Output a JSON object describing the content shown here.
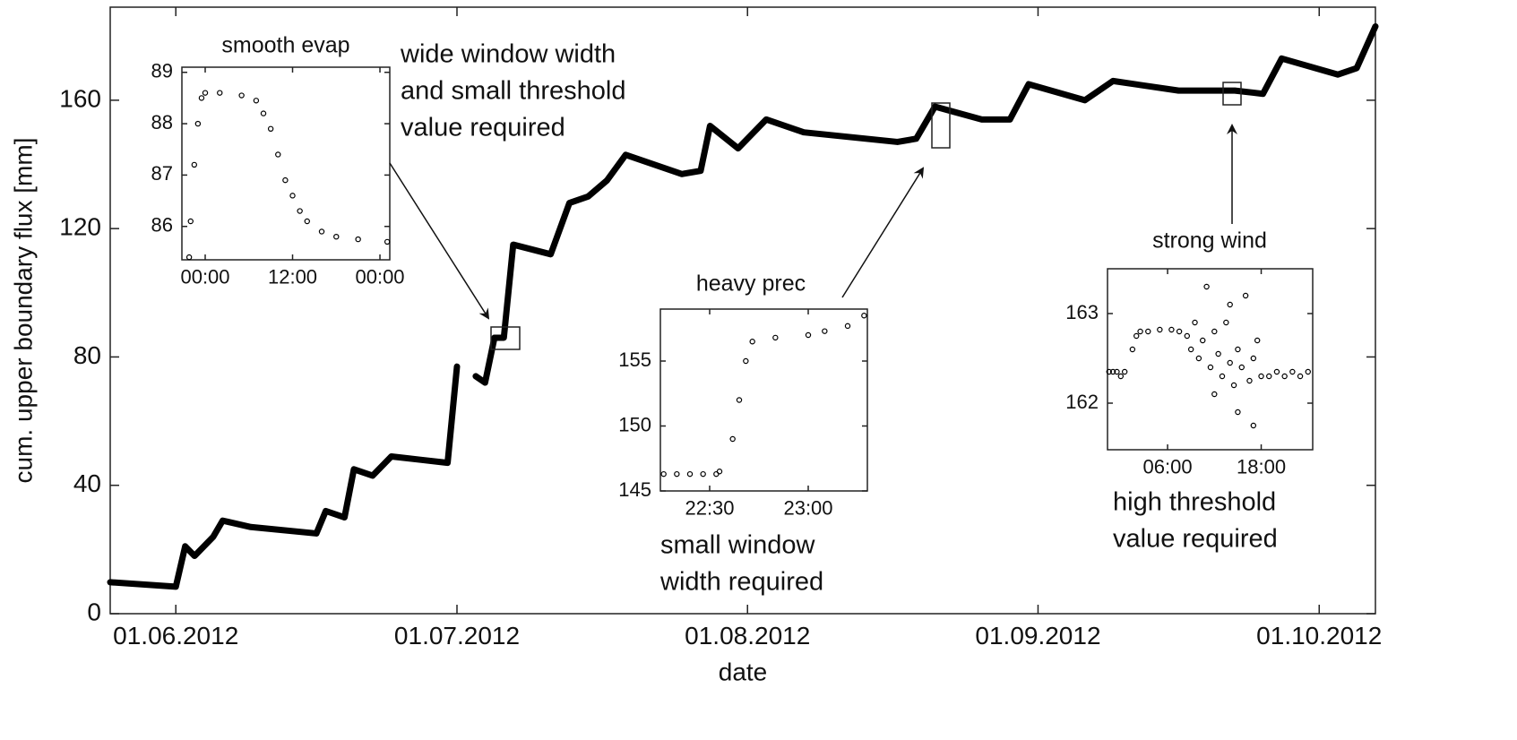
{
  "chart_data": [
    {
      "type": "line",
      "color": "#000000",
      "x_label": "date",
      "y_label": "cum. upper boundary flux [mm]",
      "x": [
        "2012-05-25",
        "2012-06-01",
        "2012-06-02",
        "2012-06-03",
        "2012-06-05",
        "2012-06-06",
        "2012-06-09",
        "2012-06-16",
        "2012-06-17",
        "2012-06-19",
        "2012-06-20",
        "2012-06-22",
        "2012-06-24",
        "2012-06-27",
        "2012-06-30",
        "2012-07-01",
        "2012-07-02",
        "2012-07-03",
        "2012-07-04",
        "2012-07-05",
        "2012-07-06",
        "2012-07-07",
        "2012-07-11",
        "2012-07-13",
        "2012-07-15",
        "2012-07-17",
        "2012-07-19",
        "2012-07-25",
        "2012-07-27",
        "2012-07-28",
        "2012-07-31",
        "2012-08-03",
        "2012-08-07",
        "2012-08-17",
        "2012-08-19",
        "2012-08-21",
        "2012-08-26",
        "2012-08-29",
        "2012-08-31",
        "2012-09-06",
        "2012-09-09",
        "2012-09-16",
        "2012-09-22",
        "2012-09-25",
        "2012-09-27",
        "2012-10-03",
        "2012-10-05",
        "2012-10-07"
      ],
      "values": [
        9.8,
        8.4,
        21,
        18,
        24,
        29,
        27,
        25,
        32,
        30,
        45,
        43,
        49,
        48,
        47,
        77,
        null,
        74,
        72,
        86,
        86,
        115,
        112,
        128,
        130,
        135,
        143,
        137,
        138,
        152,
        145,
        154,
        150,
        147,
        148,
        158,
        154,
        154,
        165,
        160,
        166,
        163,
        163,
        162,
        173,
        168,
        170,
        183
      ],
      "xlim": [
        "2012-05-25",
        "2012-10-07"
      ],
      "xticks": [
        {
          "value": "2012-06-01",
          "label": "01.06.2012"
        },
        {
          "value": "2012-07-01",
          "label": "01.07.2012"
        },
        {
          "value": "2012-08-01",
          "label": "01.08.2012"
        },
        {
          "value": "2012-09-01",
          "label": "01.09.2012"
        },
        {
          "value": "2012-10-01",
          "label": "01.10.2012"
        }
      ],
      "ylim": [
        0,
        189
      ],
      "yticks": [
        0,
        40,
        80,
        120,
        160
      ],
      "annotations": [
        {
          "text": [
            "wide window width",
            "and small threshold",
            "value required"
          ],
          "color": "#c00000"
        },
        {
          "text": [
            "small window",
            "width required"
          ],
          "color": "#c00000"
        },
        {
          "text": [
            "high threshold",
            "value required"
          ],
          "color": "#c00000"
        }
      ]
    },
    {
      "type": "scatter",
      "title": "smooth evap",
      "color": "#000000",
      "x": [
        -2.2,
        -2,
        -1.5,
        -1,
        -0.5,
        0,
        2,
        5,
        7,
        8,
        9,
        10,
        11,
        12,
        13,
        14,
        16,
        18,
        21,
        25
      ],
      "values": [
        85.4,
        86.1,
        87.2,
        88,
        88.5,
        88.6,
        88.6,
        88.55,
        88.45,
        88.2,
        87.9,
        87.4,
        86.9,
        86.6,
        86.3,
        86.1,
        85.9,
        85.8,
        85.75,
        85.7
      ],
      "xlim": [
        -3.2,
        25.35
      ],
      "xticks": [
        {
          "value": 0,
          "label": "00:00"
        },
        {
          "value": 12,
          "label": "12:00"
        },
        {
          "value": 24,
          "label": "00:00"
        }
      ],
      "ylim": [
        85.35,
        89.1
      ],
      "yticks": [
        86,
        87,
        88,
        89
      ]
    },
    {
      "type": "scatter",
      "title": "heavy prec",
      "color": "#000000",
      "x": [
        1336,
        1340,
        1344,
        1348,
        1352,
        1353,
        1357,
        1359,
        1361,
        1363,
        1370,
        1380,
        1385,
        1392,
        1397
      ],
      "values": [
        146.3,
        146.3,
        146.3,
        146.3,
        146.3,
        146.5,
        149,
        152,
        155,
        156.5,
        156.8,
        157,
        157.3,
        157.7,
        158.5
      ],
      "xlim": [
        1335,
        1398
      ],
      "xticks": [
        {
          "value": 1350,
          "label": "22:30"
        },
        {
          "value": 1380,
          "label": "23:00"
        }
      ],
      "ylim": [
        145,
        159
      ],
      "yticks": [
        145,
        150,
        155
      ]
    },
    {
      "type": "scatter",
      "title": "strong wind",
      "color": "#000000",
      "x": [
        -1.5,
        -1,
        -0.5,
        0,
        0.5,
        1.5,
        2,
        2.5,
        3.5,
        5,
        6.5,
        7.5,
        8.5,
        9,
        9.5,
        10,
        10.5,
        11,
        11.5,
        12,
        12,
        12.5,
        13,
        13.5,
        14,
        14,
        14.5,
        15,
        15,
        15.5,
        16,
        16.5,
        17,
        17,
        17.5,
        18,
        19,
        20,
        21,
        22,
        23,
        24
      ],
      "values": [
        162.35,
        162.35,
        162.35,
        162.3,
        162.35,
        162.6,
        162.75,
        162.8,
        162.8,
        162.82,
        162.82,
        162.8,
        162.75,
        162.6,
        162.9,
        162.5,
        162.7,
        163.3,
        162.4,
        162.1,
        162.8,
        162.55,
        162.3,
        162.9,
        162.45,
        163.1,
        162.2,
        162.6,
        161.9,
        162.4,
        163.2,
        162.25,
        161.75,
        162.5,
        162.7,
        162.3,
        162.3,
        162.35,
        162.3,
        162.35,
        162.3,
        162.35
      ],
      "xlim": [
        -1.7,
        24.6
      ],
      "xticks": [
        {
          "value": 6,
          "label": "06:00"
        },
        {
          "value": 18,
          "label": "18:00"
        }
      ],
      "ylim": [
        161.48,
        163.5
      ],
      "yticks": [
        162,
        163
      ]
    }
  ]
}
